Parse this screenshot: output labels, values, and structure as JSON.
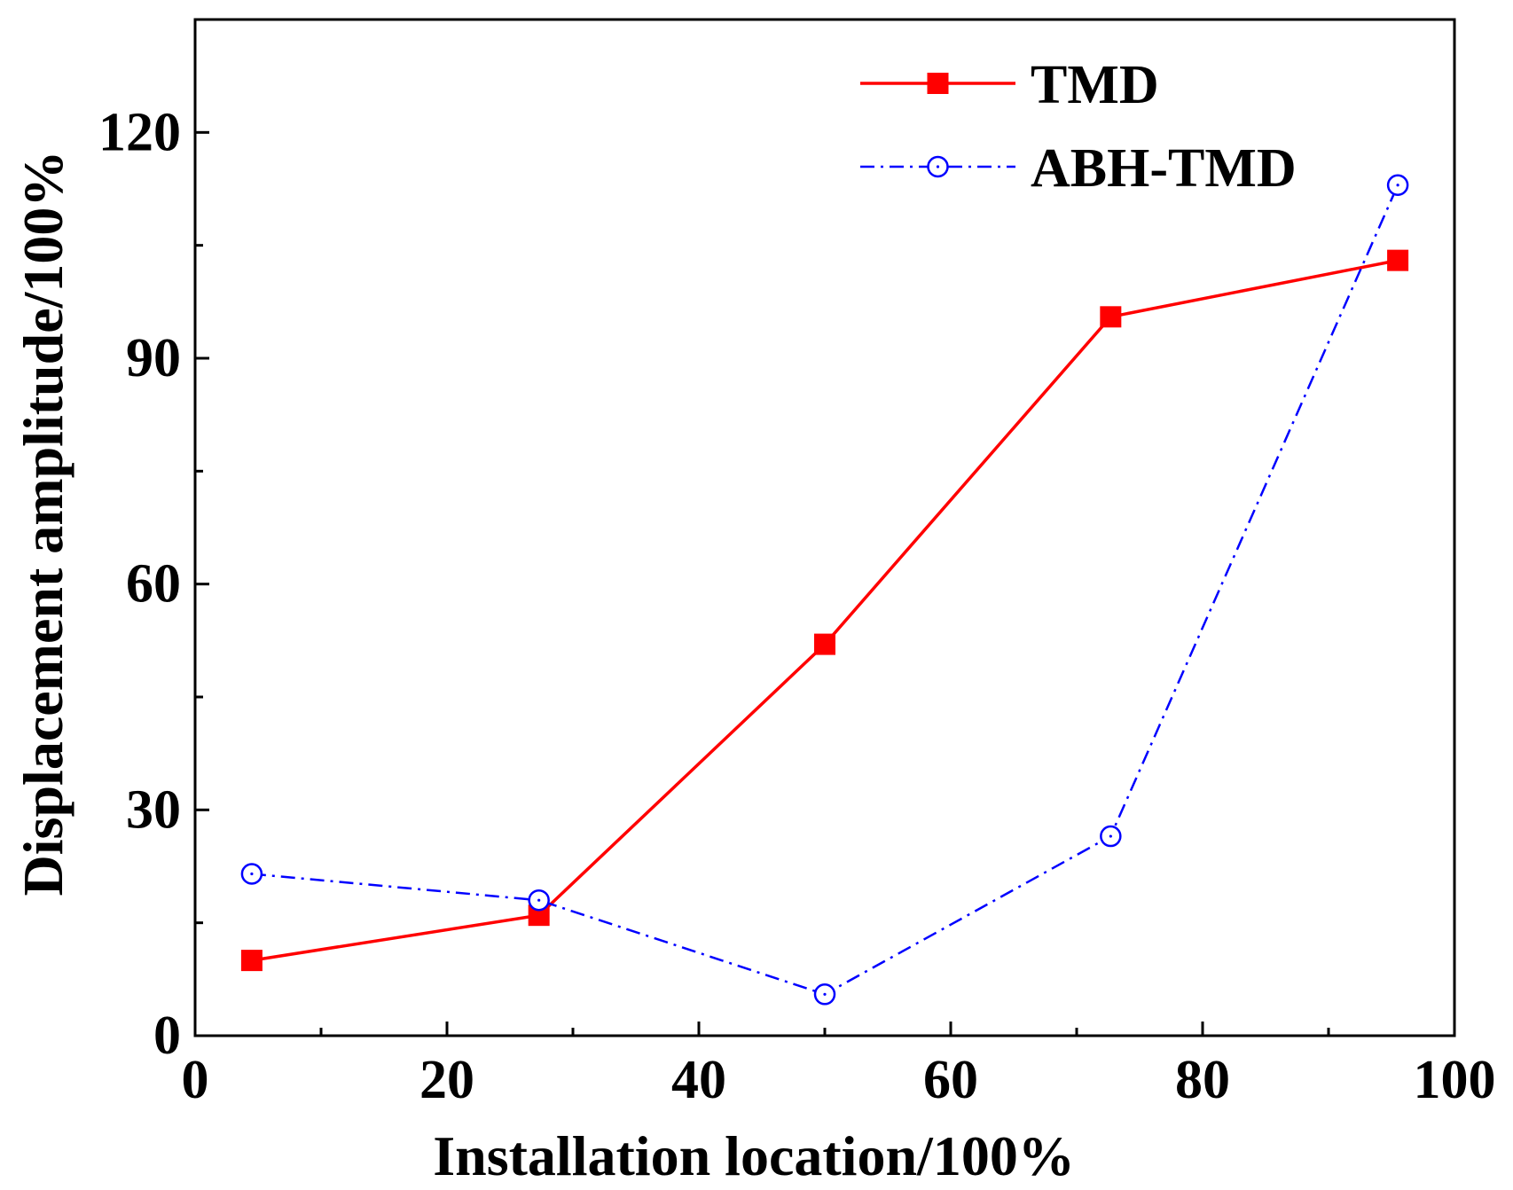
{
  "chart_data": {
    "type": "line",
    "title": "",
    "xlabel": "Installation location/100%",
    "ylabel": "Displacement amplitude/100%",
    "xlim": [
      0,
      100
    ],
    "ylim": [
      0,
      135
    ],
    "xticks": [
      0,
      20,
      40,
      60,
      80,
      100
    ],
    "xtick_labels": [
      "0",
      "20",
      "40",
      "60",
      "80",
      "100"
    ],
    "yticks": [
      0,
      30,
      60,
      90,
      120
    ],
    "ytick_labels": [
      "0",
      "30",
      "60",
      "90",
      "120"
    ],
    "x_minor_ticks": [
      10,
      30,
      50,
      70,
      90
    ],
    "y_minor_ticks": [
      15,
      45,
      75,
      105
    ],
    "grid": false,
    "legend_position": "top-right",
    "series": [
      {
        "name": "TMD",
        "color": "#ff0000",
        "line_style": "solid",
        "marker": "filled-square",
        "x": [
          4.5,
          27.3,
          50,
          72.7,
          95.5
        ],
        "y": [
          10,
          16,
          52,
          95.5,
          103
        ]
      },
      {
        "name": "ABH-TMD",
        "color": "#0000ff",
        "line_style": "dash-dot",
        "marker": "open-circle-dot",
        "x": [
          4.5,
          27.3,
          50,
          72.7,
          95.5
        ],
        "y": [
          21.5,
          18,
          5.5,
          26.5,
          113
        ]
      }
    ]
  }
}
